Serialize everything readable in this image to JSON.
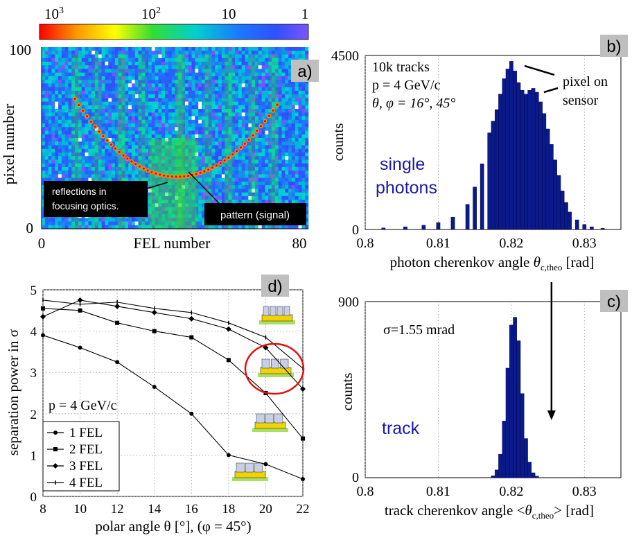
{
  "panels": {
    "a": {
      "badge": "a)",
      "colorbar_ticks": [
        {
          "base": "10",
          "exp": "3"
        },
        {
          "base": "10",
          "exp": "2"
        },
        {
          "base": "10",
          "exp": ""
        },
        {
          "base": "1",
          "exp": ""
        }
      ],
      "xlabel": "FEL number",
      "ylabel": "pixel number",
      "xticks": [
        "0",
        "80"
      ],
      "yticks": [
        "0",
        "100"
      ],
      "annotation_reflections": [
        "reflections in",
        "focusing optics."
      ],
      "annotation_pattern": "pattern (signal)"
    },
    "b": {
      "badge": "b)",
      "info_lines": [
        "10k tracks",
        "p = 4 GeV/c",
        "θ, φ = 16°, 45°"
      ],
      "peak_label": [
        "pixel on",
        "sensor"
      ],
      "series_label": [
        "single",
        "photons"
      ],
      "xlabel": "photon cherenkov angle θc,theo [rad]",
      "xlabel_main": "photon cherenkov angle ",
      "xlabel_theta": "θ",
      "xlabel_sub": "c,theo",
      "xlabel_unit": " [rad]",
      "ylabel": "counts"
    },
    "c": {
      "badge": "c)",
      "sigma_label": "σ=1.55 mrad",
      "series_label": "track",
      "xlabel_main": "track cherenkov angle <",
      "xlabel_theta": "θ",
      "xlabel_sub": "c,theo",
      "xlabel_unit": "> [rad]",
      "ylabel": "counts"
    },
    "d": {
      "badge": "d)",
      "momentum_label": "p = 4 GeV/c",
      "xlabel": "polar angle θ [°], (φ = 45°)",
      "ylabel": "separation power in σ"
    }
  },
  "colors": {
    "histogram_fill": "#0a1a8c",
    "histogram_edge": "#000033",
    "series_text": "#1a1aa8",
    "badge_bg": "#bfbfbf",
    "highlight_circle": "#dd1111",
    "grid": "#9a9a9a"
  },
  "chart_data": [
    {
      "id": "a",
      "type": "heatmap",
      "xlabel": "FEL number",
      "ylabel": "pixel number",
      "xlim": [
        0,
        80
      ],
      "ylim": [
        0,
        100
      ],
      "colorbar": {
        "scale": "log",
        "range": [
          1000,
          1
        ],
        "ticks": [
          "10^3",
          "10^2",
          "10",
          "1"
        ],
        "colors": [
          "#ff0000",
          "#ff9900",
          "#ffff00",
          "#33dd33",
          "#00d0d0",
          "#1a7aff",
          "#3050ff",
          "#7a55ff"
        ]
      }
    },
    {
      "id": "b",
      "type": "bar",
      "xlabel": "photon cherenkov angle θc,theo [rad]",
      "ylabel": "counts",
      "xlim": [
        0.8,
        0.835
      ],
      "ylim": [
        0,
        4500
      ],
      "xticks": [
        0.8,
        0.81,
        0.82,
        0.83
      ],
      "yticks": [
        0,
        4500
      ],
      "bin_centers": [
        0.8025,
        0.8055,
        0.808,
        0.81,
        0.812,
        0.814,
        0.815,
        0.816,
        0.817,
        0.8175,
        0.818,
        0.8185,
        0.819,
        0.8195,
        0.82,
        0.8205,
        0.821,
        0.8215,
        0.822,
        0.8225,
        0.823,
        0.8235,
        0.824,
        0.8245,
        0.825,
        0.8255,
        0.826,
        0.8265,
        0.827,
        0.8275,
        0.828,
        0.829,
        0.83,
        0.831,
        0.8325
      ],
      "values": [
        40,
        70,
        110,
        180,
        320,
        650,
        1100,
        1700,
        2500,
        2800,
        3100,
        3500,
        3900,
        4150,
        4350,
        4100,
        3800,
        3600,
        3500,
        3600,
        3650,
        3550,
        3300,
        3000,
        2600,
        2200,
        1800,
        1400,
        1000,
        700,
        450,
        250,
        130,
        70,
        30
      ]
    },
    {
      "id": "c",
      "type": "bar",
      "xlabel": "track cherenkov angle <θc,theo> [rad]",
      "ylabel": "counts",
      "xlim": [
        0.8,
        0.835
      ],
      "ylim": [
        0,
        900
      ],
      "xticks": [
        0.8,
        0.81,
        0.82,
        0.83
      ],
      "yticks": [
        0,
        900
      ],
      "arrow_x": 0.8255,
      "bin_centers": [
        0.8175,
        0.818,
        0.8185,
        0.819,
        0.8195,
        0.82,
        0.8205,
        0.821,
        0.8215,
        0.822,
        0.8225,
        0.823,
        0.8235
      ],
      "values": [
        10,
        40,
        120,
        290,
        560,
        780,
        820,
        700,
        430,
        200,
        80,
        25,
        8
      ]
    },
    {
      "id": "d",
      "type": "line",
      "xlabel": "polar angle θ [°], (φ = 45°)",
      "ylabel": "separation power in σ",
      "xlim": [
        8,
        22
      ],
      "ylim": [
        0,
        5
      ],
      "xticks": [
        8,
        10,
        12,
        14,
        16,
        18,
        20,
        22
      ],
      "yticks": [
        0,
        1,
        2,
        3,
        4,
        5
      ],
      "grid": true,
      "legend_position": "bottom-left",
      "x": [
        8,
        10,
        12,
        14,
        16,
        18,
        20,
        22
      ],
      "series": [
        {
          "name": "1 FEL",
          "marker": "circle",
          "values": [
            3.9,
            3.6,
            3.25,
            2.65,
            2.0,
            1.0,
            0.78,
            0.42
          ]
        },
        {
          "name": "2 FEL",
          "marker": "square",
          "values": [
            4.55,
            4.5,
            4.2,
            4.0,
            3.85,
            3.3,
            2.5,
            1.4
          ]
        },
        {
          "name": "3 FEL",
          "marker": "diamond",
          "values": [
            4.35,
            4.75,
            4.6,
            4.45,
            4.3,
            4.05,
            3.6,
            2.6
          ]
        },
        {
          "name": "4 FEL",
          "marker": "tick",
          "values": [
            4.75,
            4.65,
            4.7,
            4.55,
            4.45,
            4.2,
            3.85,
            3.1
          ]
        }
      ]
    }
  ]
}
